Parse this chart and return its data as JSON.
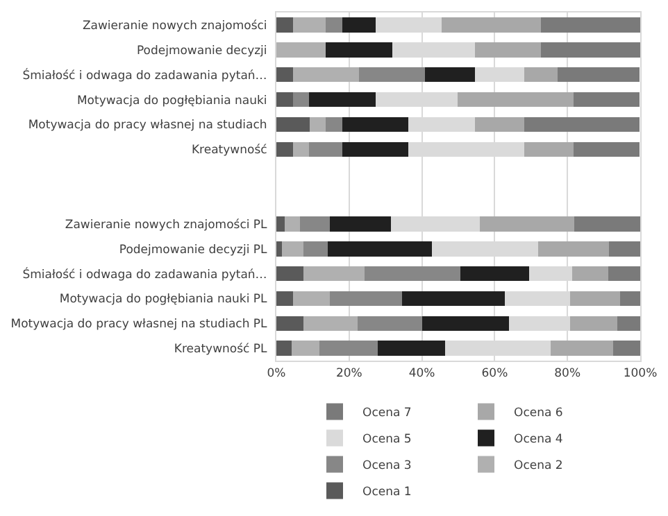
{
  "chart_data": {
    "type": "bar",
    "orientation": "horizontal",
    "stacked": true,
    "categories": [
      "Zawieranie nowych znajomości",
      "Podejmowanie decyzji",
      "Śmiałość i odwaga do zadawania pytań…",
      "Motywacja do pogłębiania nauki",
      "Motywacja do pracy własnej na studiach",
      "Kreatywność",
      null,
      null,
      "Zawieranie nowych znajomości PL",
      "Podejmowanie decyzji PL",
      "Śmiałość i odwaga do zadawania pytań…",
      "Motywacja do pogłębiania nauki PL",
      "Motywacja do pracy własnej na studiach PL",
      "Kreatywność PL"
    ],
    "series": [
      {
        "name": "Ocena 1",
        "color": "#5a5a5a",
        "values": [
          4.5,
          0,
          4.5,
          4.5,
          9.1,
          4.5,
          null,
          null,
          2.3,
          1.5,
          7.4,
          4.5,
          7.4,
          4.2
        ]
      },
      {
        "name": "Ocena 2",
        "color": "#b0b0b0",
        "values": [
          9.1,
          13.6,
          18.2,
          0,
          4.5,
          4.5,
          null,
          null,
          4.2,
          5.9,
          16.8,
          10.2,
          15.0,
          7.7
        ]
      },
      {
        "name": "Ocena 3",
        "color": "#878787",
        "values": [
          4.5,
          0,
          18.2,
          4.5,
          4.5,
          9.1,
          null,
          null,
          8.2,
          6.8,
          26.3,
          19.9,
          17.6,
          15.9
        ]
      },
      {
        "name": "Ocena 4",
        "color": "#202020",
        "values": [
          9.1,
          18.2,
          13.6,
          18.2,
          18.2,
          18.2,
          null,
          null,
          16.7,
          28.5,
          19.0,
          28.1,
          24.0,
          18.6
        ]
      },
      {
        "name": "Ocena 5",
        "color": "#dadada",
        "values": [
          18.2,
          22.7,
          13.6,
          22.7,
          18.2,
          31.8,
          null,
          null,
          24.5,
          29.2,
          11.8,
          18.1,
          16.8,
          29.0
        ]
      },
      {
        "name": "Ocena 6",
        "color": "#a8a8a8",
        "values": [
          27.3,
          18.2,
          9.1,
          31.8,
          13.6,
          13.6,
          null,
          null,
          26.0,
          19.5,
          9.9,
          13.6,
          12.9,
          17.2
        ]
      },
      {
        "name": "Ocena 7",
        "color": "#7a7a7a",
        "values": [
          27.3,
          27.3,
          22.7,
          18.2,
          31.8,
          18.2,
          null,
          null,
          18.1,
          8.6,
          8.8,
          5.6,
          6.3,
          7.4
        ]
      }
    ],
    "xlim": [
      0,
      100
    ],
    "xticks": [
      {
        "value": 0,
        "label": "0%"
      },
      {
        "value": 20,
        "label": "20%"
      },
      {
        "value": 40,
        "label": "40%"
      },
      {
        "value": 60,
        "label": "60%"
      },
      {
        "value": 80,
        "label": "80%"
      },
      {
        "value": 100,
        "label": "100%"
      }
    ],
    "grid": "x",
    "legend": "bottom"
  }
}
